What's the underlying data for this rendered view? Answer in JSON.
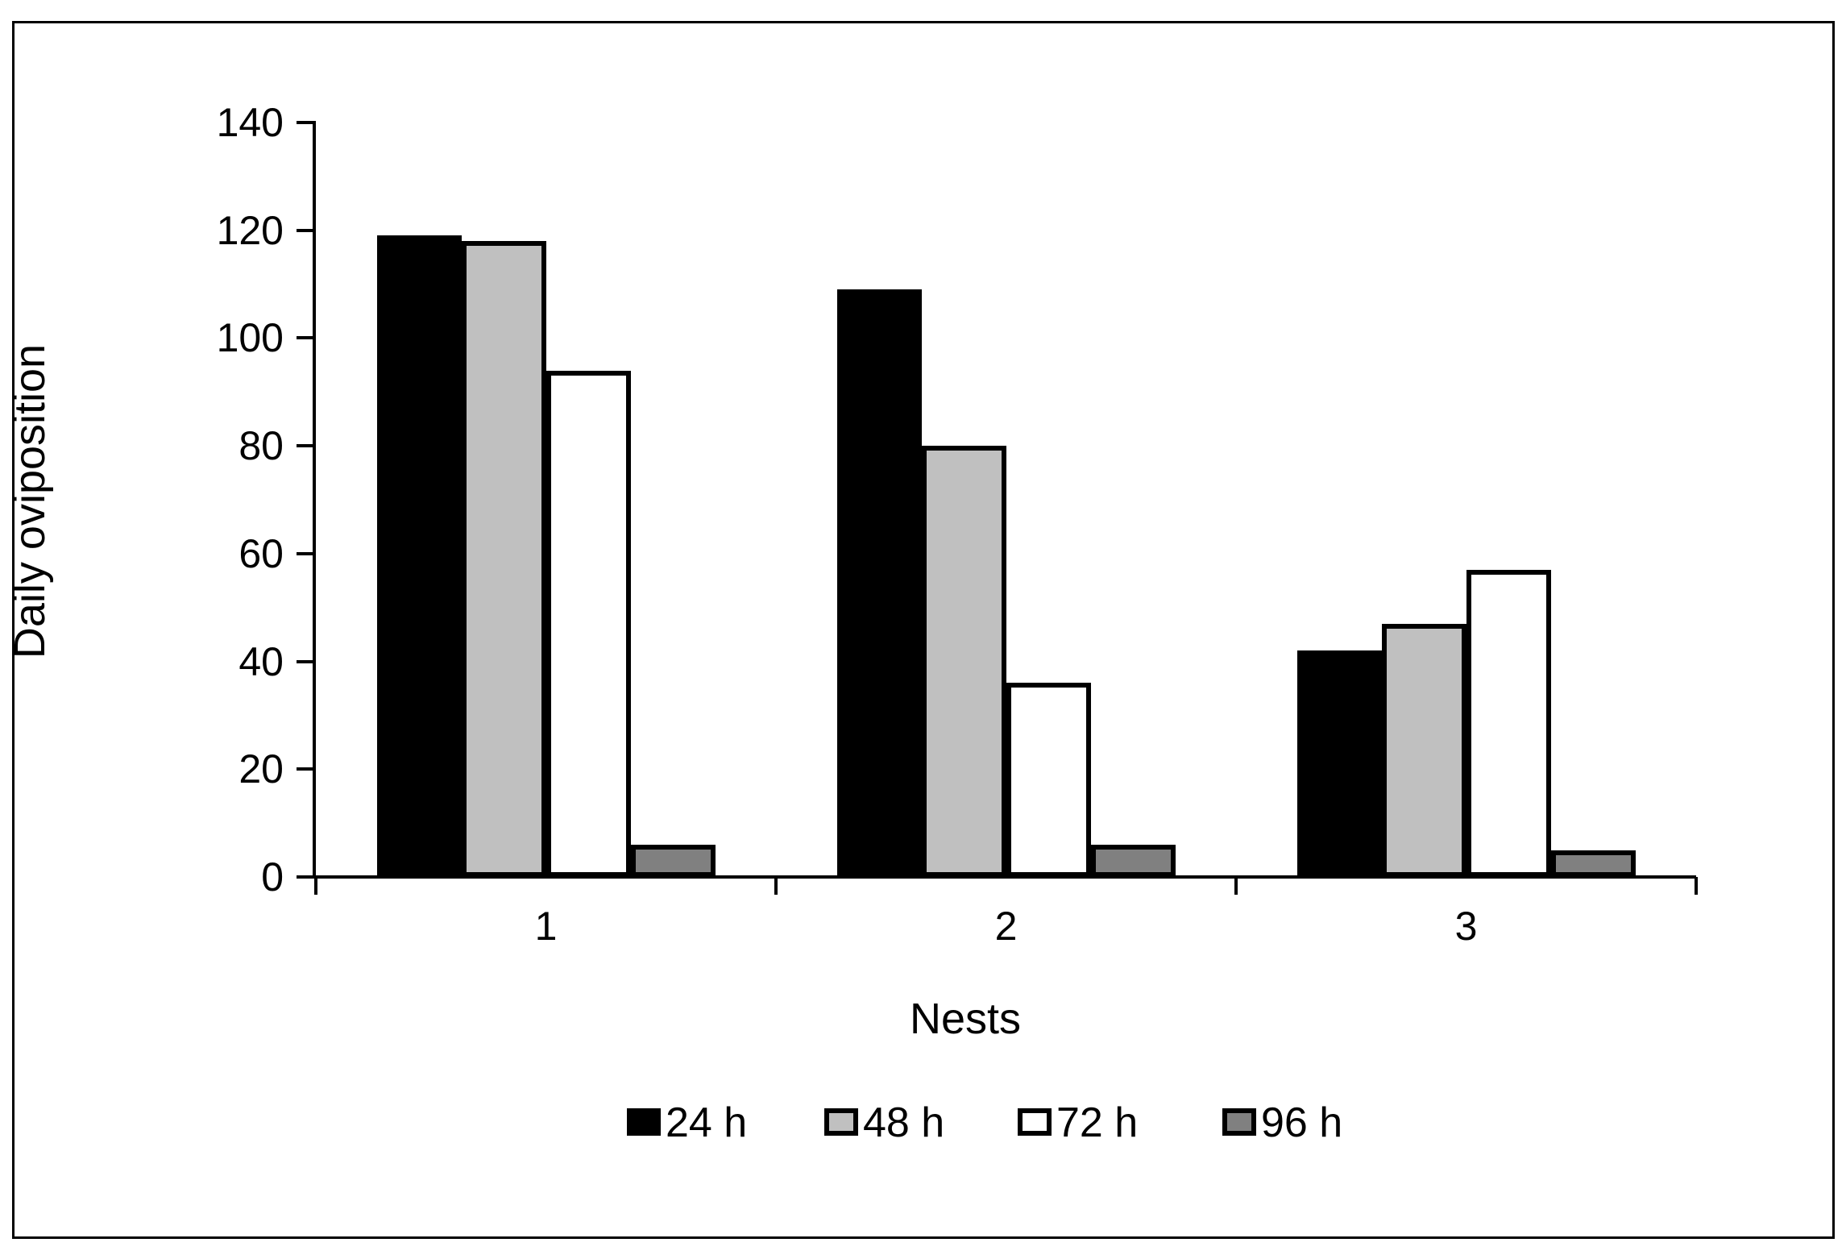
{
  "figure": {
    "background": "#ffffff",
    "frame_color": "#000000"
  },
  "chart_data": {
    "type": "bar",
    "title": "",
    "xlabel": "Nests",
    "ylabel": "Daily oviposition",
    "categories": [
      "1",
      "2",
      "3"
    ],
    "series": [
      {
        "name": "24 h",
        "color": "#000000",
        "values": [
          119,
          109,
          42
        ]
      },
      {
        "name": "48 h",
        "color": "#c0c0c0",
        "values": [
          118,
          80,
          47
        ]
      },
      {
        "name": "72 h",
        "color": "#ffffff",
        "values": [
          94,
          36,
          57
        ]
      },
      {
        "name": "96 h",
        "color": "#808080",
        "values": [
          6,
          6,
          5
        ]
      }
    ],
    "ylim": [
      0,
      140
    ],
    "ytick_step": 20,
    "grid": false,
    "legend_position": "bottom",
    "bar_outline_color": "#000000",
    "axis_color": "#000000"
  }
}
